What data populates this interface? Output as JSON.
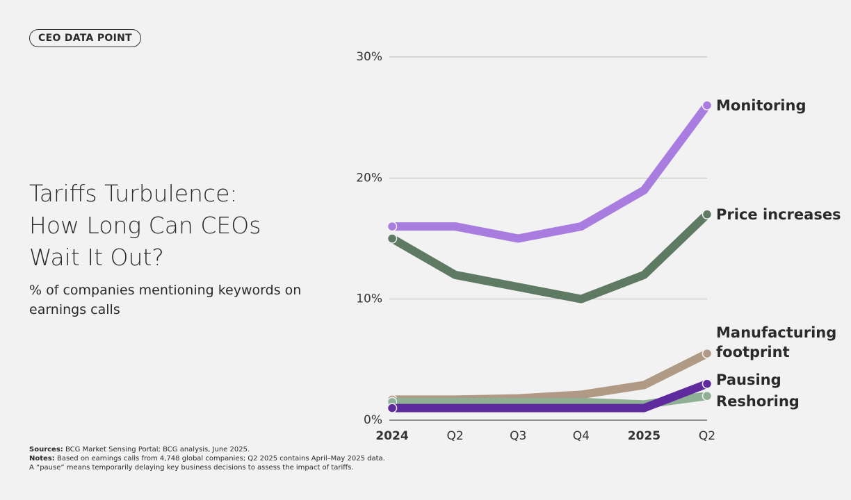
{
  "badge": "CEO DATA POINT",
  "chart_data": {
    "type": "line",
    "title": "Tariffs Turbulence: How Long Can CEOs Wait It Out?",
    "subtitle": "% of companies mentioning keywords on earnings calls",
    "categories": [
      "2024",
      "Q2",
      "Q3",
      "Q4",
      "2025",
      "Q2"
    ],
    "series": [
      {
        "name": "Manufacturing footprint",
        "color": "#b09a85",
        "values": [
          1.7,
          1.7,
          1.8,
          2.1,
          2.9,
          5.5
        ]
      },
      {
        "name": "Reshoring",
        "color": "#8fb095",
        "values": [
          1.5,
          1.5,
          1.5,
          1.5,
          1.3,
          2.0
        ]
      },
      {
        "name": "Pausing",
        "color": "#5e2a9e",
        "values": [
          1.0,
          1.0,
          1.0,
          1.0,
          1.0,
          3.0
        ]
      },
      {
        "name": "Price increases",
        "color": "#5f7a63",
        "values": [
          15,
          12,
          11,
          10,
          12,
          17
        ]
      },
      {
        "name": "Monitoring",
        "color": "#a97de0",
        "values": [
          16,
          16,
          15,
          16,
          19,
          26
        ]
      }
    ],
    "ylim": [
      0,
      30
    ],
    "yticks": [
      {
        "value": 0,
        "label": "0%"
      },
      {
        "value": 10,
        "label": "10%"
      },
      {
        "value": 20,
        "label": "20%"
      },
      {
        "value": 30,
        "label": "30%"
      }
    ],
    "grid": true
  },
  "footer": {
    "sources": {
      "label": "Sources:",
      "text": "BCG Market Sensing Portal; BCG analysis, June 2025."
    },
    "notes": {
      "label": "Notes:",
      "text": "Based on earnings calls from 4,748 global companies; Q2 2025 contains April–May 2025 data.",
      "text2": "A “pause” means temporarily delaying key business decisions to assess the impact of tariffs."
    }
  }
}
